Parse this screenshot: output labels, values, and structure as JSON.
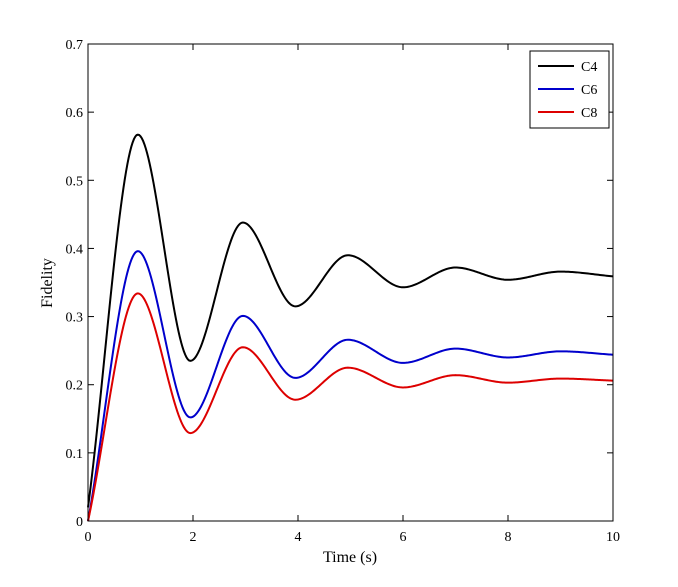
{
  "chart_data": {
    "type": "line",
    "title": "",
    "xlabel": "Time (s)",
    "ylabel": "Fidelity",
    "xlim": [
      0,
      10
    ],
    "ylim": [
      0,
      0.7
    ],
    "xticks": [
      0,
      2,
      4,
      6,
      8,
      10
    ],
    "xtick_labels": [
      "0",
      "2",
      "4",
      "6",
      "8",
      "10"
    ],
    "yticks": [
      0,
      0.1,
      0.2,
      0.3,
      0.4,
      0.5,
      0.6,
      0.7
    ],
    "ytick_labels": [
      "0",
      "0.1",
      "0.2",
      "0.3",
      "0.4",
      "0.5",
      "0.6",
      "0.7"
    ],
    "grid": false,
    "legend_position": "top-right",
    "series": [
      {
        "name": "C4",
        "color": "#000000",
        "base": 0.36,
        "amp": 0.58,
        "decay": 0.6,
        "peak_t": 0.97
      },
      {
        "name": "C6",
        "color": "#0000cc",
        "base": 0.244,
        "amp": 0.44,
        "decay": 0.6,
        "peak_t": 0.97
      },
      {
        "name": "C8",
        "color": "#dd0000",
        "base": 0.206,
        "amp": 0.38,
        "decay": 0.6,
        "peak_t": 0.97
      }
    ],
    "key_points": {
      "C4": [
        [
          0,
          0.02
        ],
        [
          0.95,
          0.567
        ],
        [
          1.95,
          0.235
        ],
        [
          2.95,
          0.438
        ],
        [
          3.95,
          0.315
        ],
        [
          4.95,
          0.39
        ],
        [
          6.0,
          0.343
        ],
        [
          7.0,
          0.372
        ],
        [
          8.0,
          0.354
        ],
        [
          9.0,
          0.366
        ],
        [
          10,
          0.359
        ]
      ],
      "C6": [
        [
          0,
          0.0
        ],
        [
          0.95,
          0.396
        ],
        [
          1.95,
          0.152
        ],
        [
          2.95,
          0.301
        ],
        [
          3.95,
          0.21
        ],
        [
          4.95,
          0.266
        ],
        [
          6.0,
          0.232
        ],
        [
          7.0,
          0.253
        ],
        [
          8.0,
          0.24
        ],
        [
          9.0,
          0.249
        ],
        [
          10,
          0.244
        ]
      ],
      "C8": [
        [
          0,
          0.0
        ],
        [
          0.95,
          0.334
        ],
        [
          1.95,
          0.129
        ],
        [
          2.95,
          0.255
        ],
        [
          3.95,
          0.178
        ],
        [
          4.95,
          0.225
        ],
        [
          6.0,
          0.196
        ],
        [
          7.0,
          0.214
        ],
        [
          8.0,
          0.203
        ],
        [
          9.0,
          0.209
        ],
        [
          10,
          0.206
        ]
      ]
    }
  }
}
